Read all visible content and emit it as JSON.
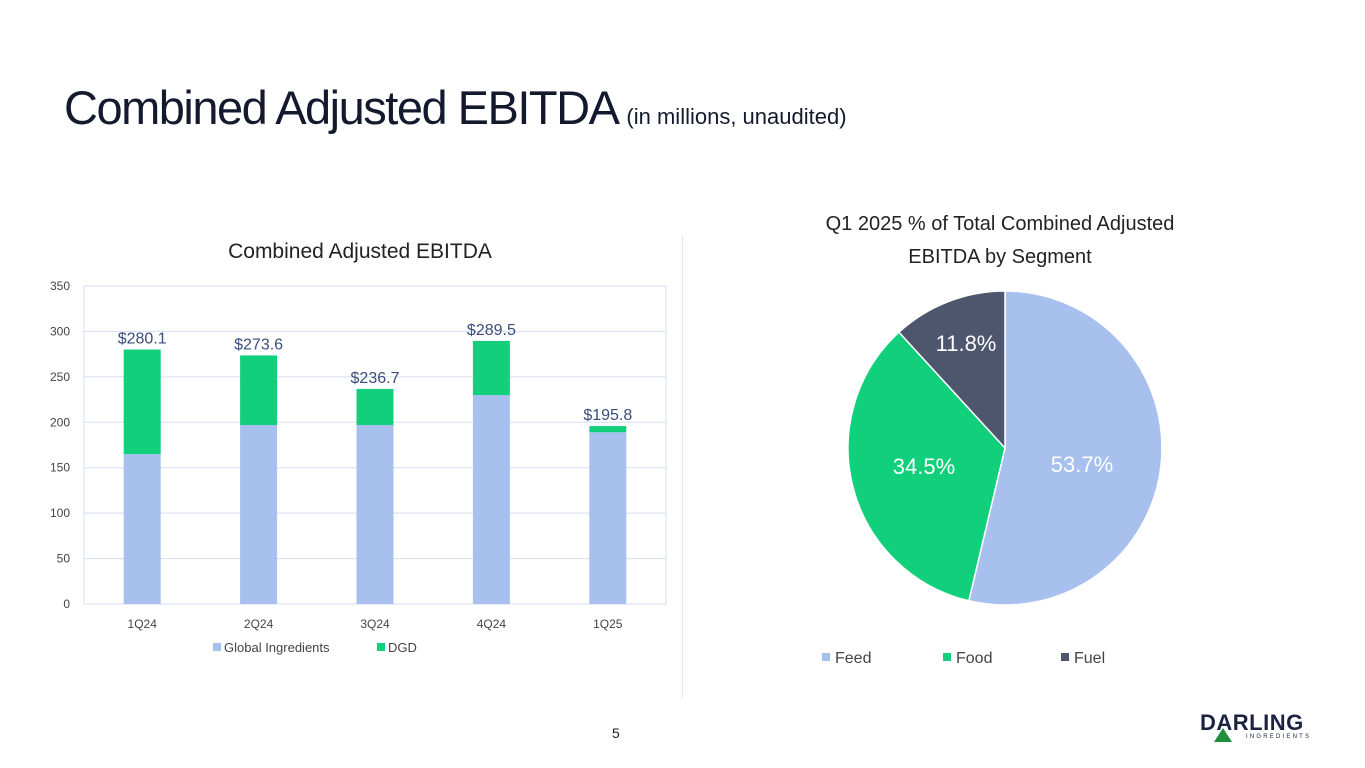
{
  "slide": {
    "title": "Combined Adjusted EBITDA",
    "subtitle": "(in millions, unaudited)",
    "page_number": "5",
    "logo": {
      "name": "DARLING",
      "tagline": "INGREDIENTS"
    }
  },
  "colors": {
    "global": "#a7c0ee",
    "dgd": "#12cf7b",
    "feed": "#a7c0ee",
    "food": "#12cf7b",
    "fuel": "#4e566e",
    "label": "#3a4d7a",
    "grid": "#d3dff2"
  },
  "chart_data": [
    {
      "type": "bar",
      "stacked": true,
      "title": "Combined Adjusted EBITDA",
      "categories": [
        "1Q24",
        "2Q24",
        "3Q24",
        "4Q24",
        "1Q25"
      ],
      "series": [
        {
          "name": "Global Ingredients",
          "values": [
            165,
            197,
            197,
            230,
            189
          ]
        },
        {
          "name": "DGD",
          "values": [
            115.1,
            76.6,
            39.7,
            59.5,
            6.8
          ]
        }
      ],
      "totals": [
        "$280.1",
        "$273.6",
        "$236.7",
        "$289.5",
        "$195.8"
      ],
      "ylim": [
        0,
        350
      ],
      "yticks": [
        0,
        50,
        100,
        150,
        200,
        250,
        300,
        350
      ],
      "legend": "bottom",
      "grid": true
    },
    {
      "type": "pie",
      "title": "Q1 2025 % of Total Combined Adjusted EBITDA by Segment",
      "title_lines": [
        "Q1 2025 % of Total Combined Adjusted",
        "EBITDA by Segment"
      ],
      "labels": [
        "Feed",
        "Food",
        "Fuel"
      ],
      "values": [
        53.7,
        34.5,
        11.8
      ],
      "value_labels": [
        "53.7%",
        "34.5%",
        "11.8%"
      ],
      "legend": "bottom"
    }
  ]
}
